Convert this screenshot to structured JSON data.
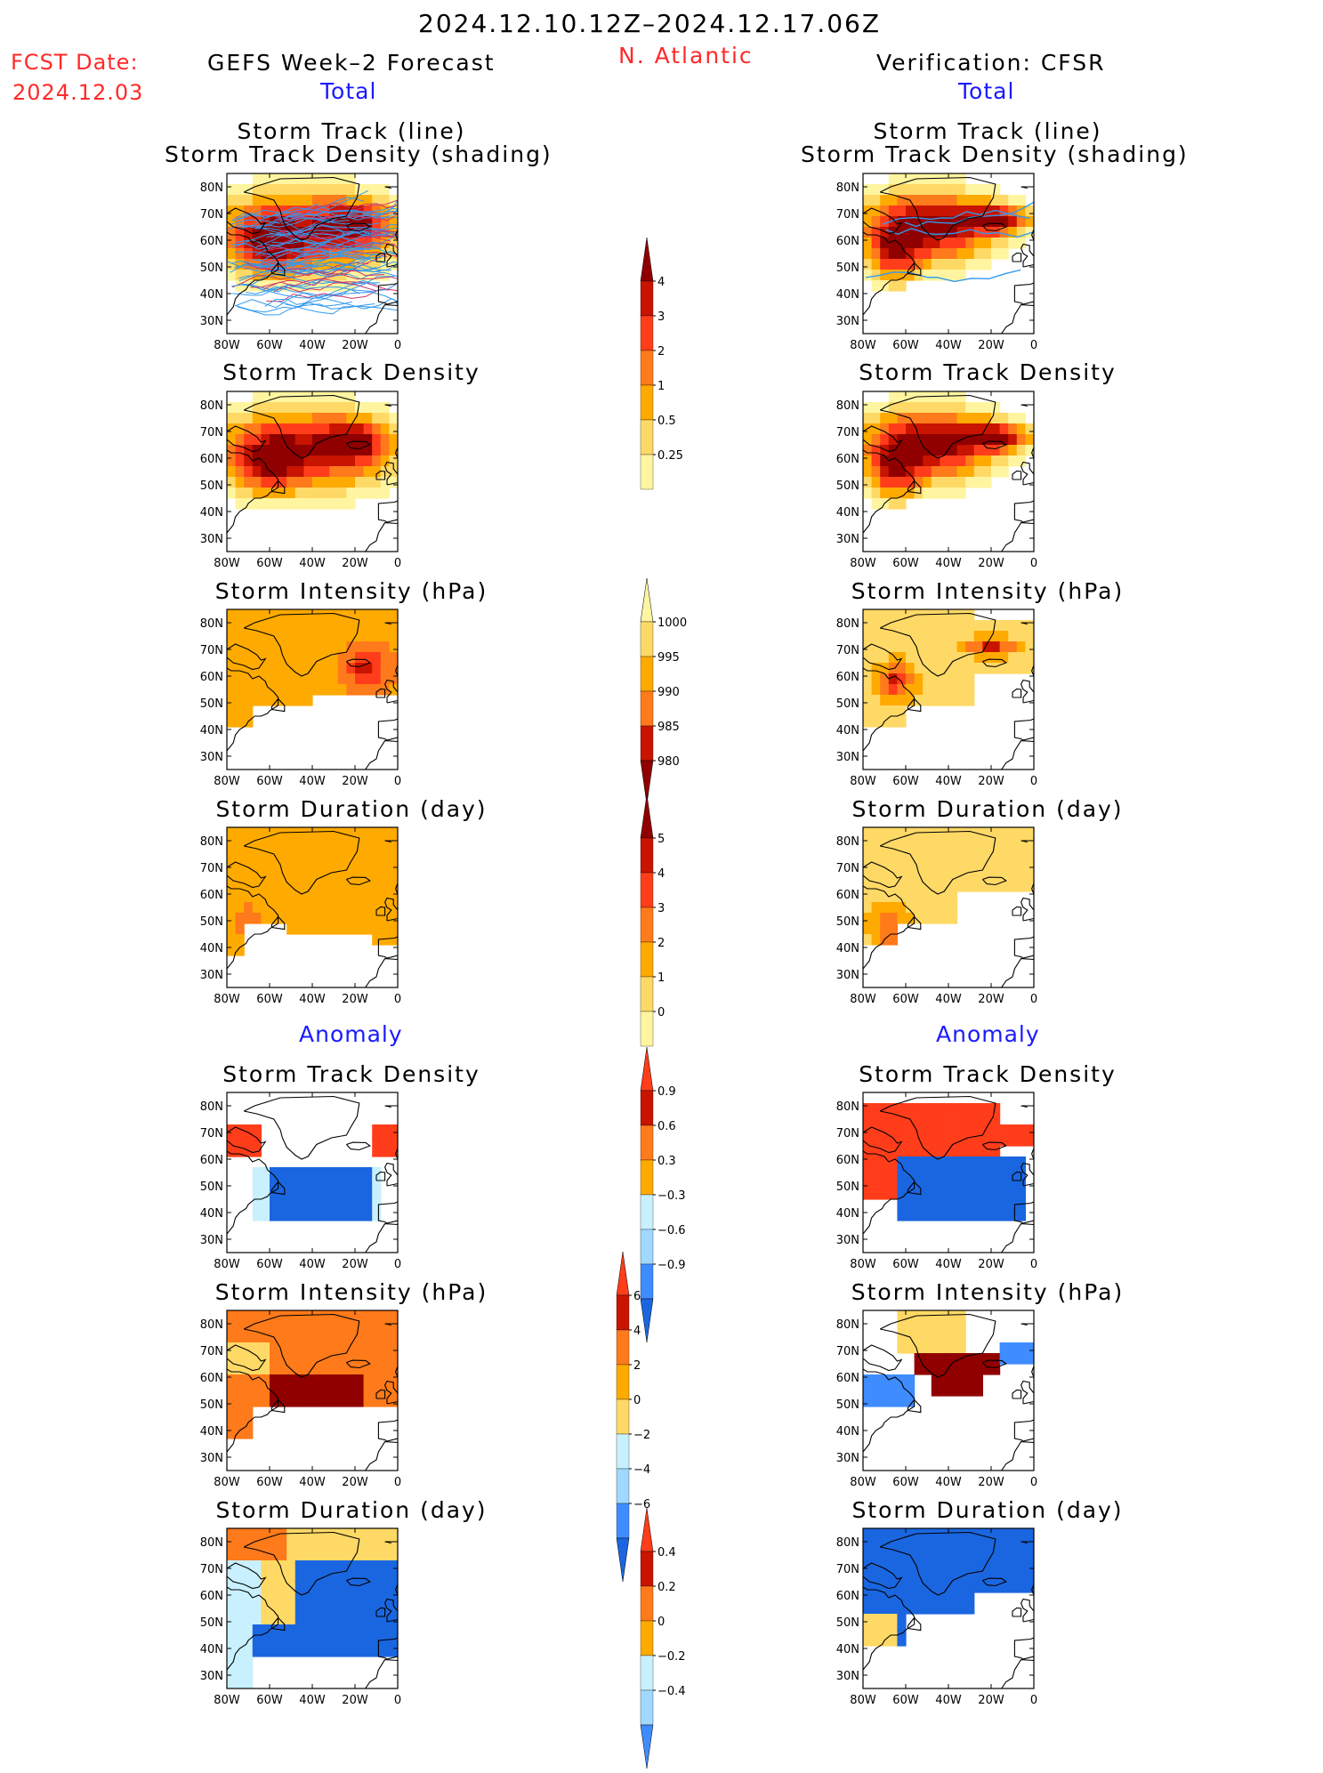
{
  "header": {
    "date_range": "2024.12.10.12Z–2024.12.17.06Z",
    "fcst_label": "FCST Date:",
    "fcst_date": "2024.12.03",
    "forecast_title": "GEFS Week–2 Forecast",
    "region": "N. Atlantic",
    "verification_title": "Verification: CFSR",
    "total_label_left": "Total",
    "total_label_right": "Total",
    "anomaly_label_left": "Anomaly",
    "anomaly_label_right": "Anomaly"
  },
  "panel_titles": {
    "track_line": "Storm Track (line)",
    "track_density_shading": "Storm Track Density (shading)",
    "track_density": "Storm Track Density",
    "intensity": "Storm Intensity (hPa)",
    "duration": "Storm Duration (day)"
  },
  "axes": {
    "lat_labels": [
      "80N",
      "70N",
      "60N",
      "50N",
      "40N",
      "30N"
    ],
    "lon_labels": [
      "80W",
      "60W",
      "40W",
      "20W",
      "0"
    ]
  },
  "colorbars": {
    "track_density": [
      "4",
      "3",
      "2",
      "1",
      "0.5",
      "0.25"
    ],
    "intensity": [
      "1000",
      "995",
      "990",
      "985",
      "980"
    ],
    "duration": [
      "5",
      "4",
      "3",
      "2",
      "1",
      "0"
    ],
    "anom_track_density": [
      "0.9",
      "0.6",
      "0.3",
      "−0.3",
      "−0.6",
      "−0.9"
    ],
    "anom_intensity": [
      "6",
      "4",
      "2",
      "0",
      "−2",
      "−4",
      "−6"
    ],
    "anom_duration": [
      "0.4",
      "0.2",
      "0",
      "−0.2",
      "−0.4"
    ]
  },
  "palette": {
    "warm": [
      "#fff5a0",
      "#ffd966",
      "#ffaa00",
      "#ff7a1a",
      "#ff3d1a",
      "#c81400",
      "#900000"
    ],
    "cool": [
      "#c8f0ff",
      "#a0d8ff",
      "#6cb6ff",
      "#3f8cff",
      "#1a66e0",
      "#0a48c8"
    ],
    "track_blue": "#3399ee",
    "track_red": "#cc3366",
    "coast": "#000000"
  }
}
